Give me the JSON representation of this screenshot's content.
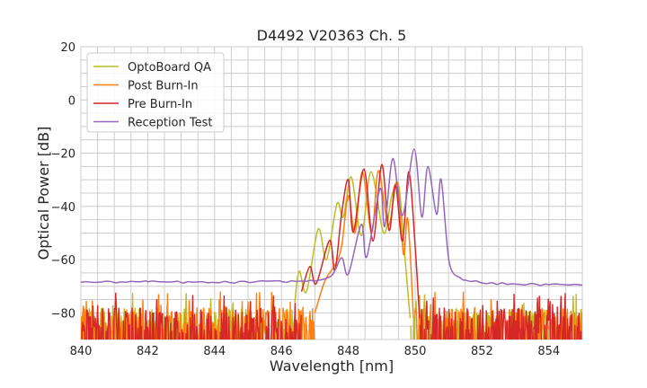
{
  "chart_data": {
    "type": "line",
    "title": "D4492 V20363 Ch. 5",
    "xlabel": "Wavelength [nm]",
    "ylabel": "Optical Power [dB]",
    "xlim": [
      840,
      855
    ],
    "ylim": [
      -90,
      20
    ],
    "xticks": [
      840,
      842,
      844,
      846,
      848,
      850,
      852,
      854
    ],
    "yticks": [
      20,
      0,
      -20,
      -40,
      -60,
      -80
    ],
    "ytick_labels": [
      "20",
      "0",
      "−20",
      "−40",
      "−60",
      "−80"
    ],
    "grid": true,
    "legend_placement": "top-left",
    "series": [
      {
        "name": "OptoBoard QA",
        "color": "#bcbd22",
        "noise_ranges": [
          [
            840,
            846.4
          ],
          [
            849.85,
            855
          ]
        ],
        "points": [
          [
            846.4,
            -76
          ],
          [
            846.53,
            -64.3
          ],
          [
            846.75,
            -72
          ],
          [
            847.1,
            -48.5
          ],
          [
            847.35,
            -60
          ],
          [
            847.66,
            -39
          ],
          [
            847.85,
            -44
          ],
          [
            848.09,
            -29
          ],
          [
            848.39,
            -51
          ],
          [
            848.68,
            -27
          ],
          [
            849.06,
            -50
          ],
          [
            849.3,
            -36
          ],
          [
            849.51,
            -32.3
          ],
          [
            849.7,
            -60
          ],
          [
            849.85,
            -82
          ]
        ]
      },
      {
        "name": "Post Burn-In",
        "color": "#ff7f0e",
        "noise_ranges": [
          [
            840,
            847.0
          ],
          [
            850.0,
            855
          ]
        ],
        "points": [
          [
            847.0,
            -80
          ],
          [
            847.3,
            -68
          ],
          [
            847.6,
            -62
          ],
          [
            847.8,
            -55
          ],
          [
            848.0,
            -36
          ],
          [
            848.2,
            -50
          ],
          [
            848.42,
            -27
          ],
          [
            848.7,
            -50
          ],
          [
            848.9,
            -26.6
          ],
          [
            849.2,
            -47
          ],
          [
            849.46,
            -31
          ],
          [
            849.65,
            -58
          ],
          [
            849.78,
            -44.8
          ],
          [
            849.95,
            -82
          ]
        ]
      },
      {
        "name": "Pre Burn-In",
        "color": "#d62728",
        "noise_ranges": [
          [
            840,
            846.6
          ],
          [
            850.15,
            855
          ]
        ],
        "points": [
          [
            846.6,
            -72
          ],
          [
            846.85,
            -62.6
          ],
          [
            847.04,
            -69
          ],
          [
            847.44,
            -52.8
          ],
          [
            847.6,
            -64
          ],
          [
            847.8,
            -42.8
          ],
          [
            848.0,
            -30
          ],
          [
            848.15,
            -49.6
          ],
          [
            848.47,
            -26
          ],
          [
            848.74,
            -53
          ],
          [
            849.0,
            -24.3
          ],
          [
            849.22,
            -49
          ],
          [
            849.41,
            -32
          ],
          [
            849.62,
            -53
          ],
          [
            849.81,
            -27
          ],
          [
            850.0,
            -55
          ],
          [
            850.13,
            -82
          ]
        ]
      },
      {
        "name": "Reception Test",
        "color": "#9467bd",
        "noise_ranges": [],
        "points": [
          [
            840,
            -68.5
          ],
          [
            842,
            -68.3
          ],
          [
            844,
            -68.6
          ],
          [
            846,
            -68.2
          ],
          [
            847.0,
            -68
          ],
          [
            847.5,
            -66
          ],
          [
            847.8,
            -59.3
          ],
          [
            848.0,
            -65.4
          ],
          [
            848.39,
            -46.8
          ],
          [
            848.55,
            -59
          ],
          [
            848.95,
            -33.3
          ],
          [
            849.09,
            -47.5
          ],
          [
            849.33,
            -22
          ],
          [
            849.62,
            -43.4
          ],
          [
            849.97,
            -18.5
          ],
          [
            850.2,
            -44
          ],
          [
            850.38,
            -25
          ],
          [
            850.64,
            -43
          ],
          [
            850.78,
            -30
          ],
          [
            851.02,
            -61
          ],
          [
            851.37,
            -67
          ],
          [
            852,
            -68.8
          ],
          [
            853,
            -69.2
          ],
          [
            854,
            -69.4
          ],
          [
            855,
            -69.6
          ]
        ]
      }
    ]
  }
}
